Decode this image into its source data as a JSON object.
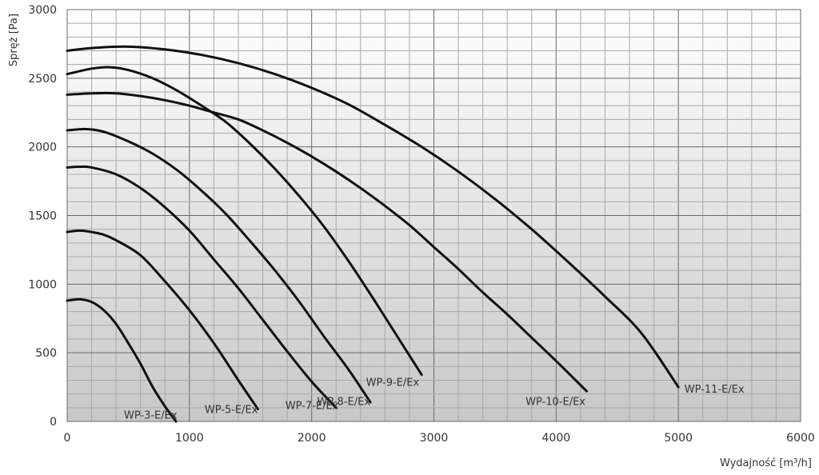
{
  "chart_data": {
    "type": "line",
    "xlabel": "Wydajność [m³/h]",
    "ylabel": "Spręż [Pa]",
    "xlim": [
      0,
      6000
    ],
    "ylim": [
      0,
      3000
    ],
    "x_ticks": [
      0,
      1000,
      2000,
      3000,
      4000,
      5000,
      6000
    ],
    "y_ticks": [
      0,
      500,
      1000,
      1500,
      2000,
      2500,
      3000
    ],
    "x_tick_labels": [
      "0",
      "1000",
      "2000",
      "3000",
      "4000",
      "5000",
      "6000"
    ],
    "y_tick_labels": [
      "0",
      "500",
      "1000",
      "1500",
      "2000",
      "2500",
      "3000"
    ],
    "grid": true,
    "legend": "inline curve labels",
    "series": [
      {
        "name": "WP-3-E/Ex",
        "points": [
          [
            0,
            880
          ],
          [
            100,
            890
          ],
          [
            200,
            870
          ],
          [
            300,
            810
          ],
          [
            400,
            710
          ],
          [
            500,
            570
          ],
          [
            600,
            420
          ],
          [
            700,
            250
          ],
          [
            800,
            110
          ],
          [
            890,
            0
          ]
        ]
      },
      {
        "name": "WP-5-E/Ex",
        "points": [
          [
            0,
            1380
          ],
          [
            100,
            1390
          ],
          [
            200,
            1380
          ],
          [
            300,
            1360
          ],
          [
            400,
            1320
          ],
          [
            600,
            1210
          ],
          [
            800,
            1020
          ],
          [
            1000,
            810
          ],
          [
            1200,
            570
          ],
          [
            1400,
            300
          ],
          [
            1560,
            90
          ]
        ]
      },
      {
        "name": "WP-7-E/Ex",
        "points": [
          [
            0,
            1850
          ],
          [
            100,
            1855
          ],
          [
            200,
            1850
          ],
          [
            400,
            1800
          ],
          [
            600,
            1700
          ],
          [
            800,
            1560
          ],
          [
            1000,
            1390
          ],
          [
            1200,
            1180
          ],
          [
            1400,
            970
          ],
          [
            1600,
            740
          ],
          [
            1800,
            510
          ],
          [
            2000,
            290
          ],
          [
            2200,
            100
          ]
        ]
      },
      {
        "name": "WP-8-E/Ex",
        "points": [
          [
            0,
            2120
          ],
          [
            150,
            2130
          ],
          [
            300,
            2110
          ],
          [
            500,
            2040
          ],
          [
            700,
            1950
          ],
          [
            900,
            1830
          ],
          [
            1100,
            1680
          ],
          [
            1300,
            1510
          ],
          [
            1500,
            1310
          ],
          [
            1700,
            1100
          ],
          [
            1900,
            870
          ],
          [
            2100,
            620
          ],
          [
            2300,
            380
          ],
          [
            2480,
            140
          ]
        ]
      },
      {
        "name": "WP-9-E/Ex",
        "points": [
          [
            0,
            2530
          ],
          [
            200,
            2570
          ],
          [
            350,
            2580
          ],
          [
            500,
            2560
          ],
          [
            700,
            2500
          ],
          [
            900,
            2410
          ],
          [
            1100,
            2300
          ],
          [
            1300,
            2180
          ],
          [
            1500,
            2020
          ],
          [
            1700,
            1840
          ],
          [
            1900,
            1640
          ],
          [
            2100,
            1420
          ],
          [
            2300,
            1170
          ],
          [
            2500,
            900
          ],
          [
            2700,
            620
          ],
          [
            2900,
            340
          ]
        ]
      },
      {
        "name": "WP-10-E/Ex",
        "points": [
          [
            0,
            2380
          ],
          [
            200,
            2390
          ],
          [
            400,
            2390
          ],
          [
            600,
            2370
          ],
          [
            800,
            2340
          ],
          [
            1000,
            2300
          ],
          [
            1200,
            2250
          ],
          [
            1400,
            2200
          ],
          [
            1600,
            2120
          ],
          [
            1800,
            2030
          ],
          [
            2000,
            1930
          ],
          [
            2200,
            1820
          ],
          [
            2400,
            1700
          ],
          [
            2600,
            1570
          ],
          [
            2800,
            1430
          ],
          [
            3000,
            1270
          ],
          [
            3200,
            1110
          ],
          [
            3400,
            940
          ],
          [
            3600,
            780
          ],
          [
            3800,
            610
          ],
          [
            4000,
            440
          ],
          [
            4250,
            220
          ]
        ]
      },
      {
        "name": "WP-11-E/Ex",
        "points": [
          [
            0,
            2700
          ],
          [
            200,
            2720
          ],
          [
            500,
            2730
          ],
          [
            800,
            2710
          ],
          [
            1100,
            2670
          ],
          [
            1400,
            2610
          ],
          [
            1700,
            2530
          ],
          [
            2000,
            2430
          ],
          [
            2300,
            2310
          ],
          [
            2600,
            2160
          ],
          [
            2900,
            2000
          ],
          [
            3200,
            1820
          ],
          [
            3500,
            1620
          ],
          [
            3800,
            1400
          ],
          [
            4100,
            1160
          ],
          [
            4400,
            910
          ],
          [
            4700,
            640
          ],
          [
            5000,
            250
          ]
        ]
      }
    ],
    "series_labels": [
      {
        "text": "WP-3-E/Ex",
        "x": 900,
        "y": 20
      },
      {
        "text": "WP-5-E/Ex",
        "x": 1560,
        "y": 60
      },
      {
        "text": "WP-7-E/Ex",
        "x": 2220,
        "y": 90
      },
      {
        "text": "WP-8-E/Ex",
        "x": 2480,
        "y": 120
      },
      {
        "text": "WP-9-E/Ex",
        "x": 2880,
        "y": 260
      },
      {
        "text": "WP-10-E/Ex",
        "x": 4240,
        "y": 120
      },
      {
        "text": "WP-11-E/Ex",
        "x": 5050,
        "y": 210
      }
    ]
  },
  "colors": {
    "background_top": "#ffffff",
    "background_bottom": "#c8c8c8",
    "grid_minor": "#a9a9a9",
    "grid_major": "#6a6a6a",
    "curve": "#111111",
    "text": "#333333"
  }
}
